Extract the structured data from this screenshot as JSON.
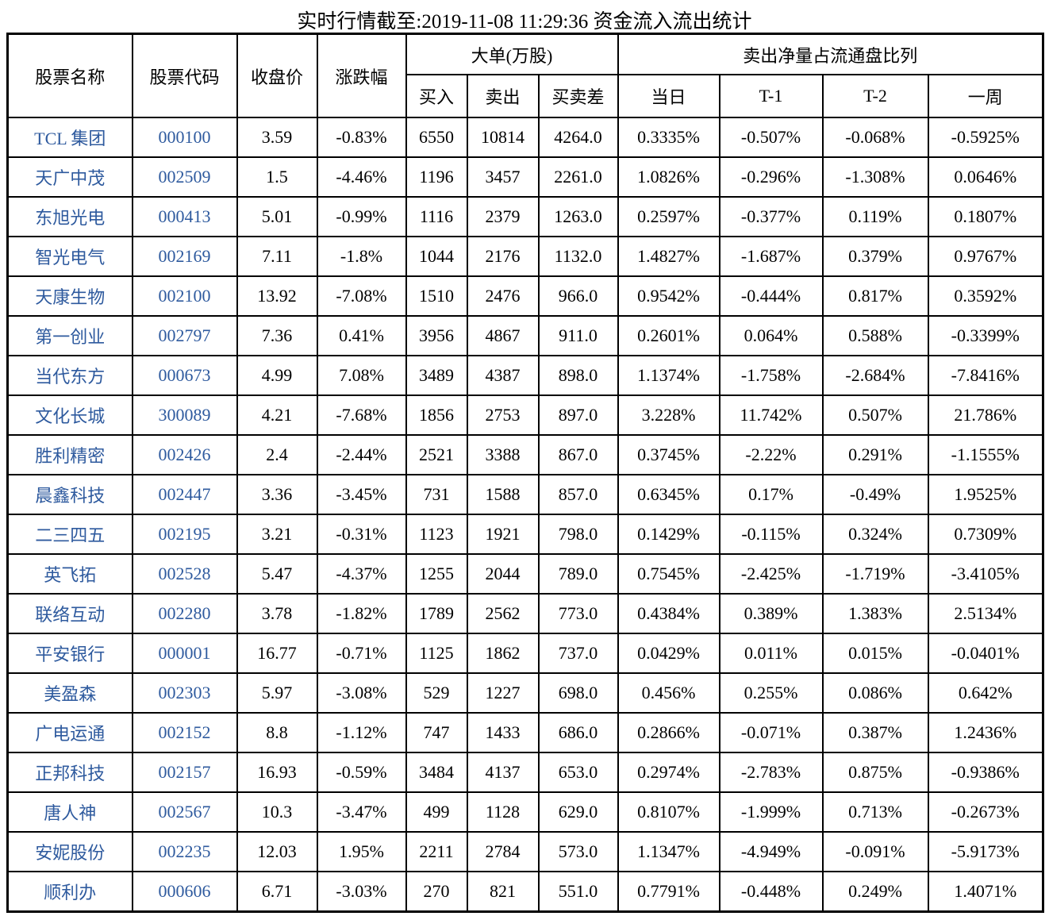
{
  "title": "实时行情截至:2019-11-08 11:29:36 资金流入流出统计",
  "colors": {
    "stock_link_blue": "#2E5A9E",
    "border_black": "#000000",
    "background": "#ffffff"
  },
  "table": {
    "header": {
      "name": "股票名称",
      "code": "股票代码",
      "close": "收盘价",
      "change": "涨跌幅",
      "big_order_group": "大单(万股)",
      "buy": "买入",
      "sell": "卖出",
      "diff": "买卖差",
      "net_sell_group": "卖出净量占流通盘比列",
      "day": "当日",
      "t1": "T-1",
      "t2": "T-2",
      "week": "一周"
    },
    "column_keys": [
      "name",
      "code",
      "close",
      "change",
      "buy",
      "sell",
      "diff",
      "day",
      "t1",
      "t2",
      "week"
    ],
    "rows": [
      {
        "name": "TCL 集团",
        "code": "000100",
        "close": "3.59",
        "change": "-0.83%",
        "buy": "6550",
        "sell": "10814",
        "diff": "4264.0",
        "day": "0.3335%",
        "t1": "-0.507%",
        "t2": "-0.068%",
        "week": "-0.5925%"
      },
      {
        "name": "天广中茂",
        "code": "002509",
        "close": "1.5",
        "change": "-4.46%",
        "buy": "1196",
        "sell": "3457",
        "diff": "2261.0",
        "day": "1.0826%",
        "t1": "-0.296%",
        "t2": "-1.308%",
        "week": "0.0646%"
      },
      {
        "name": "东旭光电",
        "code": "000413",
        "close": "5.01",
        "change": "-0.99%",
        "buy": "1116",
        "sell": "2379",
        "diff": "1263.0",
        "day": "0.2597%",
        "t1": "-0.377%",
        "t2": "0.119%",
        "week": "0.1807%"
      },
      {
        "name": "智光电气",
        "code": "002169",
        "close": "7.11",
        "change": "-1.8%",
        "buy": "1044",
        "sell": "2176",
        "diff": "1132.0",
        "day": "1.4827%",
        "t1": "-1.687%",
        "t2": "0.379%",
        "week": "0.9767%"
      },
      {
        "name": "天康生物",
        "code": "002100",
        "close": "13.92",
        "change": "-7.08%",
        "buy": "1510",
        "sell": "2476",
        "diff": "966.0",
        "day": "0.9542%",
        "t1": "-0.444%",
        "t2": "0.817%",
        "week": "0.3592%"
      },
      {
        "name": "第一创业",
        "code": "002797",
        "close": "7.36",
        "change": "0.41%",
        "buy": "3956",
        "sell": "4867",
        "diff": "911.0",
        "day": "0.2601%",
        "t1": "0.064%",
        "t2": "0.588%",
        "week": "-0.3399%"
      },
      {
        "name": "当代东方",
        "code": "000673",
        "close": "4.99",
        "change": "7.08%",
        "buy": "3489",
        "sell": "4387",
        "diff": "898.0",
        "day": "1.1374%",
        "t1": "-1.758%",
        "t2": "-2.684%",
        "week": "-7.8416%"
      },
      {
        "name": "文化长城",
        "code": "300089",
        "close": "4.21",
        "change": "-7.68%",
        "buy": "1856",
        "sell": "2753",
        "diff": "897.0",
        "day": "3.228%",
        "t1": "11.742%",
        "t2": "0.507%",
        "week": "21.786%"
      },
      {
        "name": "胜利精密",
        "code": "002426",
        "close": "2.4",
        "change": "-2.44%",
        "buy": "2521",
        "sell": "3388",
        "diff": "867.0",
        "day": "0.3745%",
        "t1": "-2.22%",
        "t2": "0.291%",
        "week": "-1.1555%"
      },
      {
        "name": "晨鑫科技",
        "code": "002447",
        "close": "3.36",
        "change": "-3.45%",
        "buy": "731",
        "sell": "1588",
        "diff": "857.0",
        "day": "0.6345%",
        "t1": "0.17%",
        "t2": "-0.49%",
        "week": "1.9525%"
      },
      {
        "name": "二三四五",
        "code": "002195",
        "close": "3.21",
        "change": "-0.31%",
        "buy": "1123",
        "sell": "1921",
        "diff": "798.0",
        "day": "0.1429%",
        "t1": "-0.115%",
        "t2": "0.324%",
        "week": "0.7309%"
      },
      {
        "name": "英飞拓",
        "code": "002528",
        "close": "5.47",
        "change": "-4.37%",
        "buy": "1255",
        "sell": "2044",
        "diff": "789.0",
        "day": "0.7545%",
        "t1": "-2.425%",
        "t2": "-1.719%",
        "week": "-3.4105%"
      },
      {
        "name": "联络互动",
        "code": "002280",
        "close": "3.78",
        "change": "-1.82%",
        "buy": "1789",
        "sell": "2562",
        "diff": "773.0",
        "day": "0.4384%",
        "t1": "0.389%",
        "t2": "1.383%",
        "week": "2.5134%"
      },
      {
        "name": "平安银行",
        "code": "000001",
        "close": "16.77",
        "change": "-0.71%",
        "buy": "1125",
        "sell": "1862",
        "diff": "737.0",
        "day": "0.0429%",
        "t1": "0.011%",
        "t2": "0.015%",
        "week": "-0.0401%"
      },
      {
        "name": "美盈森",
        "code": "002303",
        "close": "5.97",
        "change": "-3.08%",
        "buy": "529",
        "sell": "1227",
        "diff": "698.0",
        "day": "0.456%",
        "t1": "0.255%",
        "t2": "0.086%",
        "week": "0.642%"
      },
      {
        "name": "广电运通",
        "code": "002152",
        "close": "8.8",
        "change": "-1.12%",
        "buy": "747",
        "sell": "1433",
        "diff": "686.0",
        "day": "0.2866%",
        "t1": "-0.071%",
        "t2": "0.387%",
        "week": "1.2436%"
      },
      {
        "name": "正邦科技",
        "code": "002157",
        "close": "16.93",
        "change": "-0.59%",
        "buy": "3484",
        "sell": "4137",
        "diff": "653.0",
        "day": "0.2974%",
        "t1": "-2.783%",
        "t2": "0.875%",
        "week": "-0.9386%"
      },
      {
        "name": "唐人神",
        "code": "002567",
        "close": "10.3",
        "change": "-3.47%",
        "buy": "499",
        "sell": "1128",
        "diff": "629.0",
        "day": "0.8107%",
        "t1": "-1.999%",
        "t2": "0.713%",
        "week": "-0.2673%"
      },
      {
        "name": "安妮股份",
        "code": "002235",
        "close": "12.03",
        "change": "1.95%",
        "buy": "2211",
        "sell": "2784",
        "diff": "573.0",
        "day": "1.1347%",
        "t1": "-4.949%",
        "t2": "-0.091%",
        "week": "-5.9173%"
      },
      {
        "name": "顺利办",
        "code": "000606",
        "close": "6.71",
        "change": "-3.03%",
        "buy": "270",
        "sell": "821",
        "diff": "551.0",
        "day": "0.7791%",
        "t1": "-0.448%",
        "t2": "0.249%",
        "week": "1.4071%"
      }
    ]
  }
}
